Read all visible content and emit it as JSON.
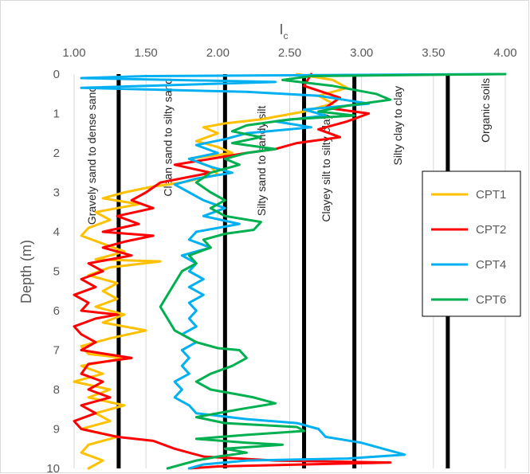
{
  "chart_data": {
    "type": "line",
    "orientation": "depth-profile",
    "xlabel": "I",
    "xlabel_sub": "c",
    "ylabel": "Depth (m)",
    "xlim": [
      1.0,
      4.0
    ],
    "ylim": [
      0,
      10
    ],
    "x_ticks": [
      "1.00",
      "1.50",
      "2.00",
      "2.50",
      "3.00",
      "3.50",
      "4.00"
    ],
    "y_ticks": [
      "0",
      "1",
      "2",
      "3",
      "4",
      "5",
      "6",
      "7",
      "8",
      "9",
      "10"
    ],
    "grid": "vertical",
    "legend_position": "right",
    "zone_boundaries": [
      1.31,
      2.05,
      2.6,
      2.95,
      3.6
    ],
    "zone_labels": [
      {
        "text": "Gravely sand to dense sand",
        "x": 1.15,
        "depth": 0.3
      },
      {
        "text": "Clean sand to silty sand",
        "x": 1.68,
        "depth": 0.1
      },
      {
        "text": "Silty sand to sandy silt",
        "x": 2.33,
        "depth": 0.8
      },
      {
        "text": "Clayey silt to silty clay",
        "x": 2.78,
        "depth": 1.0
      },
      {
        "text": "Silty clay to clay",
        "x": 3.28,
        "depth": 0.3
      },
      {
        "text": "Organic soils",
        "x": 3.89,
        "depth": 0.1
      }
    ],
    "series": [
      {
        "name": "CPT1",
        "color": "#ffc000",
        "points": [
          [
            2.55,
            0
          ],
          [
            2.8,
            0.15
          ],
          [
            2.9,
            0.35
          ],
          [
            2.7,
            0.55
          ],
          [
            2.8,
            0.75
          ],
          [
            2.6,
            0.95
          ],
          [
            2.3,
            1.15
          ],
          [
            2.05,
            1.25
          ],
          [
            1.9,
            1.35
          ],
          [
            2.0,
            1.5
          ],
          [
            1.85,
            1.7
          ],
          [
            2.0,
            1.85
          ],
          [
            2.1,
            2.0
          ],
          [
            1.8,
            2.15
          ],
          [
            1.95,
            2.35
          ],
          [
            2.0,
            2.55
          ],
          [
            1.75,
            2.75
          ],
          [
            1.55,
            2.85
          ],
          [
            1.35,
            3.0
          ],
          [
            1.2,
            3.15
          ],
          [
            1.45,
            3.3
          ],
          [
            1.15,
            3.5
          ],
          [
            1.25,
            3.7
          ],
          [
            1.1,
            3.9
          ],
          [
            1.05,
            4.1
          ],
          [
            1.2,
            4.3
          ],
          [
            1.35,
            4.5
          ],
          [
            1.15,
            4.7
          ],
          [
            1.6,
            4.75
          ],
          [
            1.25,
            4.9
          ],
          [
            1.1,
            5.1
          ],
          [
            1.3,
            5.3
          ],
          [
            1.2,
            5.5
          ],
          [
            1.3,
            5.7
          ],
          [
            1.15,
            5.9
          ],
          [
            1.35,
            6.1
          ],
          [
            1.2,
            6.3
          ],
          [
            1.5,
            6.5
          ],
          [
            1.25,
            6.7
          ],
          [
            1.05,
            6.9
          ],
          [
            1.1,
            7.1
          ],
          [
            1.35,
            7.2
          ],
          [
            1.05,
            7.4
          ],
          [
            1.2,
            7.6
          ],
          [
            1.0,
            7.8
          ],
          [
            1.25,
            8.0
          ],
          [
            1.1,
            8.2
          ],
          [
            1.35,
            8.4
          ],
          [
            1.15,
            8.6
          ],
          [
            1.25,
            8.8
          ],
          [
            1.05,
            9.0
          ],
          [
            1.3,
            9.2
          ],
          [
            1.1,
            9.4
          ],
          [
            1.05,
            9.6
          ],
          [
            1.2,
            9.8
          ],
          [
            1.1,
            10.0
          ]
        ]
      },
      {
        "name": "CPT2",
        "color": "#ff0000",
        "points": [
          [
            2.65,
            0
          ],
          [
            2.6,
            0.3
          ],
          [
            2.85,
            0.6
          ],
          [
            2.75,
            0.85
          ],
          [
            3.05,
            1.0
          ],
          [
            2.9,
            1.2
          ],
          [
            2.7,
            1.4
          ],
          [
            2.85,
            1.6
          ],
          [
            2.55,
            1.75
          ],
          [
            2.4,
            1.9
          ],
          [
            2.2,
            2.0
          ],
          [
            1.95,
            2.15
          ],
          [
            1.7,
            2.3
          ],
          [
            1.95,
            2.5
          ],
          [
            1.6,
            2.75
          ],
          [
            1.5,
            3.0
          ],
          [
            1.4,
            3.2
          ],
          [
            1.55,
            3.4
          ],
          [
            1.3,
            3.6
          ],
          [
            1.45,
            3.8
          ],
          [
            1.2,
            4.0
          ],
          [
            1.55,
            4.1
          ],
          [
            1.35,
            4.25
          ],
          [
            1.2,
            4.4
          ],
          [
            1.4,
            4.6
          ],
          [
            1.1,
            4.8
          ],
          [
            1.2,
            5.0
          ],
          [
            1.05,
            5.2
          ],
          [
            1.15,
            5.4
          ],
          [
            1.0,
            5.6
          ],
          [
            1.1,
            5.8
          ],
          [
            1.05,
            6.0
          ],
          [
            1.3,
            6.1
          ],
          [
            1.15,
            6.2
          ],
          [
            1.0,
            6.4
          ],
          [
            1.05,
            6.6
          ],
          [
            1.15,
            6.8
          ],
          [
            1.05,
            7.0
          ],
          [
            1.4,
            7.2
          ],
          [
            1.1,
            7.35
          ],
          [
            1.05,
            7.6
          ],
          [
            1.2,
            7.8
          ],
          [
            1.1,
            8.0
          ],
          [
            1.25,
            8.2
          ],
          [
            1.05,
            8.4
          ],
          [
            1.15,
            8.6
          ],
          [
            1.0,
            8.8
          ],
          [
            1.05,
            9.0
          ],
          [
            1.3,
            9.2
          ],
          [
            1.55,
            9.3
          ],
          [
            1.7,
            9.5
          ],
          [
            1.9,
            9.7
          ],
          [
            2.4,
            9.8
          ],
          [
            3.2,
            9.85
          ],
          [
            2.6,
            9.9
          ],
          [
            2.0,
            9.95
          ],
          [
            1.8,
            10.0
          ]
        ]
      },
      {
        "name": "CPT4",
        "color": "#00b0f0",
        "points": [
          [
            3.95,
            0
          ],
          [
            1.5,
            0.05
          ],
          [
            1.05,
            0.1
          ],
          [
            2.4,
            0.2
          ],
          [
            1.05,
            0.35
          ],
          [
            2.2,
            0.45
          ],
          [
            2.7,
            0.55
          ],
          [
            3.05,
            0.75
          ],
          [
            2.6,
            0.9
          ],
          [
            2.75,
            1.05
          ],
          [
            2.4,
            1.2
          ],
          [
            2.65,
            1.35
          ],
          [
            2.2,
            1.5
          ],
          [
            2.05,
            1.65
          ],
          [
            1.85,
            1.8
          ],
          [
            2.0,
            2.0
          ],
          [
            1.8,
            2.15
          ],
          [
            1.95,
            2.35
          ],
          [
            2.1,
            2.5
          ],
          [
            1.85,
            2.65
          ],
          [
            1.7,
            2.8
          ],
          [
            1.8,
            3.0
          ],
          [
            1.9,
            3.2
          ],
          [
            2.05,
            3.4
          ],
          [
            1.9,
            3.6
          ],
          [
            2.15,
            3.8
          ],
          [
            1.85,
            4.0
          ],
          [
            1.8,
            4.2
          ],
          [
            1.95,
            4.4
          ],
          [
            1.75,
            4.6
          ],
          [
            1.85,
            4.8
          ],
          [
            1.8,
            5.0
          ],
          [
            1.9,
            5.2
          ],
          [
            1.8,
            5.4
          ],
          [
            1.9,
            5.6
          ],
          [
            1.8,
            5.8
          ],
          [
            1.85,
            6.0
          ],
          [
            1.8,
            6.2
          ],
          [
            1.85,
            6.4
          ],
          [
            1.75,
            6.6
          ],
          [
            1.85,
            6.8
          ],
          [
            1.75,
            7.0
          ],
          [
            1.8,
            7.2
          ],
          [
            1.75,
            7.4
          ],
          [
            1.8,
            7.6
          ],
          [
            1.7,
            7.8
          ],
          [
            1.75,
            8.0
          ],
          [
            1.7,
            8.2
          ],
          [
            1.8,
            8.4
          ],
          [
            1.85,
            8.6
          ],
          [
            2.2,
            8.75
          ],
          [
            2.55,
            8.85
          ],
          [
            2.7,
            9.0
          ],
          [
            2.75,
            9.2
          ],
          [
            3.0,
            9.35
          ],
          [
            3.15,
            9.5
          ],
          [
            3.3,
            9.65
          ],
          [
            2.9,
            9.75
          ],
          [
            2.2,
            9.8
          ],
          [
            1.9,
            9.9
          ],
          [
            1.8,
            10.0
          ]
        ]
      },
      {
        "name": "CPT6",
        "color": "#00b050",
        "points": [
          [
            4.0,
            0
          ],
          [
            2.65,
            0.05
          ],
          [
            2.45,
            0.15
          ],
          [
            2.8,
            0.3
          ],
          [
            3.1,
            0.5
          ],
          [
            3.2,
            0.65
          ],
          [
            2.9,
            0.8
          ],
          [
            2.7,
            0.95
          ],
          [
            2.95,
            1.05
          ],
          [
            2.5,
            1.15
          ],
          [
            2.2,
            1.3
          ],
          [
            2.1,
            1.45
          ],
          [
            2.3,
            1.6
          ],
          [
            2.1,
            1.75
          ],
          [
            2.4,
            1.9
          ],
          [
            2.2,
            2.0
          ],
          [
            2.05,
            2.15
          ],
          [
            2.15,
            2.3
          ],
          [
            1.95,
            2.5
          ],
          [
            1.85,
            2.75
          ],
          [
            1.95,
            3.0
          ],
          [
            2.05,
            3.2
          ],
          [
            1.95,
            3.4
          ],
          [
            2.05,
            3.6
          ],
          [
            2.3,
            3.75
          ],
          [
            2.25,
            3.95
          ],
          [
            2.05,
            4.05
          ],
          [
            1.9,
            4.2
          ],
          [
            1.95,
            4.4
          ],
          [
            1.8,
            4.6
          ],
          [
            1.85,
            4.8
          ],
          [
            1.75,
            5.0
          ],
          [
            1.7,
            5.3
          ],
          [
            1.65,
            5.6
          ],
          [
            1.6,
            5.9
          ],
          [
            1.65,
            6.2
          ],
          [
            1.7,
            6.5
          ],
          [
            1.85,
            6.8
          ],
          [
            2.0,
            6.95
          ],
          [
            2.15,
            7.0
          ],
          [
            2.2,
            7.2
          ],
          [
            2.1,
            7.4
          ],
          [
            1.95,
            7.6
          ],
          [
            1.85,
            7.8
          ],
          [
            1.95,
            8.0
          ],
          [
            2.1,
            8.1
          ],
          [
            2.25,
            8.2
          ],
          [
            2.4,
            8.35
          ],
          [
            2.15,
            8.5
          ],
          [
            1.85,
            8.7
          ],
          [
            2.05,
            8.85
          ],
          [
            2.55,
            8.95
          ],
          [
            2.6,
            9.05
          ],
          [
            2.2,
            9.15
          ],
          [
            1.85,
            9.25
          ],
          [
            2.2,
            9.35
          ],
          [
            2.45,
            9.4
          ],
          [
            2.05,
            9.5
          ],
          [
            2.2,
            9.6
          ],
          [
            2.0,
            9.7
          ],
          [
            1.85,
            9.8
          ],
          [
            1.75,
            9.9
          ],
          [
            1.65,
            10.0
          ]
        ]
      }
    ]
  }
}
